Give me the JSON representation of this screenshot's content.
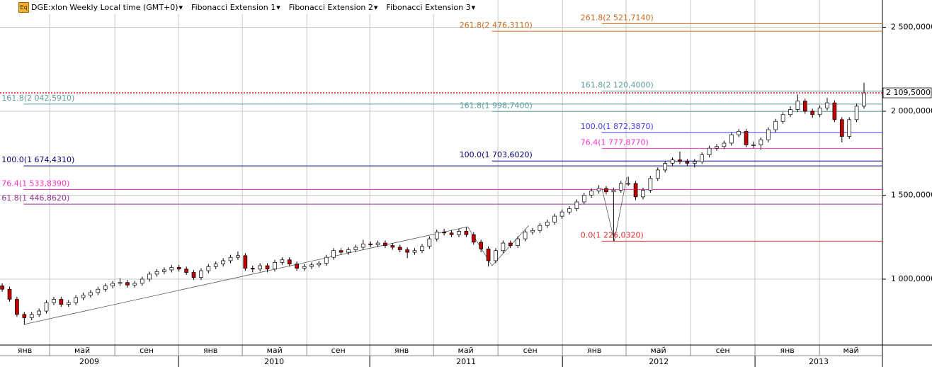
{
  "chart_data": {
    "type": "candlestick",
    "title": "DGE:xlon Weekly Local time (GMT+0)",
    "indicators": [
      "Fibonacci Extension 1",
      "Fibonacci Extension 2",
      "Fibonacci Extension 3"
    ],
    "open": [
      960000,
      940000,
      880000,
      790000,
      770000,
      790000,
      810000,
      860000,
      880000,
      850000,
      860000,
      890000,
      905000,
      920000,
      940000,
      960000,
      975000,
      980000,
      965000,
      975000,
      1000000,
      1030000,
      1045000,
      1055000,
      1070000,
      1060000,
      1040000,
      1010000,
      1050000,
      1075000,
      1090000,
      1110000,
      1130000,
      1140000,
      1065000,
      1060000,
      1080000,
      1060000,
      1100000,
      1115000,
      1090000,
      1065000,
      1075000,
      1085000,
      1095000,
      1130000,
      1170000,
      1160000,
      1175000,
      1190000,
      1210000,
      1205000,
      1215000,
      1200000,
      1190000,
      1175000,
      1160000,
      1170000,
      1195000,
      1240000,
      1280000,
      1275000,
      1265000,
      1285000,
      1265000,
      1220000,
      1180000,
      1110000,
      1170000,
      1215000,
      1200000,
      1240000,
      1280000,
      1290000,
      1320000,
      1340000,
      1375000,
      1400000,
      1420000,
      1460000,
      1500000,
      1525000,
      1540000,
      1520000,
      1530000,
      1570000,
      1570000,
      1490000,
      1530000,
      1600000,
      1650000,
      1690000,
      1710000,
      1700000,
      1690000,
      1700000,
      1740000,
      1780000,
      1790000,
      1810000,
      1860000,
      1880000,
      1800000,
      1800000,
      1830000,
      1890000,
      1940000,
      1980000,
      2010000,
      2060000,
      2000000,
      1980000,
      2020000,
      2050000,
      1950000,
      1850000,
      1950000,
      2030000
    ],
    "high": [
      975000,
      955000,
      895000,
      805000,
      805000,
      825000,
      875000,
      895000,
      895000,
      875000,
      905000,
      920000,
      935000,
      955000,
      975000,
      990000,
      1005000,
      995000,
      990000,
      1015000,
      1045000,
      1060000,
      1070000,
      1085000,
      1085000,
      1075000,
      1055000,
      1065000,
      1090000,
      1105000,
      1125000,
      1145000,
      1165000,
      1155000,
      1080000,
      1095000,
      1095000,
      1115000,
      1130000,
      1130000,
      1105000,
      1090000,
      1100000,
      1110000,
      1145000,
      1185000,
      1185000,
      1190000,
      1205000,
      1235000,
      1225000,
      1230000,
      1230000,
      1215000,
      1205000,
      1190000,
      1185000,
      1210000,
      1255000,
      1295000,
      1300000,
      1290000,
      1300000,
      1310000,
      1280000,
      1235000,
      1195000,
      1185000,
      1230000,
      1230000,
      1255000,
      1295000,
      1305000,
      1335000,
      1355000,
      1390000,
      1415000,
      1435000,
      1475000,
      1515000,
      1540000,
      1560000,
      1555000,
      1545000,
      1585000,
      1610000,
      1585000,
      1545000,
      1615000,
      1665000,
      1705000,
      1725000,
      1760000,
      1715000,
      1715000,
      1755000,
      1795000,
      1805000,
      1825000,
      1875000,
      1895000,
      1895000,
      1820000,
      1845000,
      1905000,
      1955000,
      1995000,
      2030000,
      2100000,
      2075000,
      2015000,
      2035000,
      2080000,
      2065000,
      1965000,
      1965000,
      2045000,
      2170000
    ],
    "low": [
      925000,
      865000,
      775000,
      730000,
      755000,
      775000,
      795000,
      845000,
      835000,
      835000,
      845000,
      875000,
      890000,
      905000,
      925000,
      945000,
      960000,
      950000,
      950000,
      960000,
      985000,
      1015000,
      1030000,
      1040000,
      1045000,
      1025000,
      995000,
      995000,
      1035000,
      1060000,
      1075000,
      1095000,
      1115000,
      1050000,
      1040000,
      1045000,
      1040000,
      1045000,
      1085000,
      1075000,
      1050000,
      1050000,
      1060000,
      1070000,
      1080000,
      1115000,
      1145000,
      1145000,
      1160000,
      1175000,
      1190000,
      1190000,
      1185000,
      1175000,
      1160000,
      1125000,
      1145000,
      1155000,
      1180000,
      1225000,
      1260000,
      1250000,
      1250000,
      1250000,
      1205000,
      1160000,
      1075000,
      1095000,
      1155000,
      1185000,
      1185000,
      1225000,
      1265000,
      1275000,
      1305000,
      1325000,
      1360000,
      1385000,
      1405000,
      1445000,
      1485000,
      1510000,
      1505000,
      1228000,
      1515000,
      1555000,
      1470000,
      1475000,
      1515000,
      1585000,
      1635000,
      1675000,
      1685000,
      1675000,
      1665000,
      1685000,
      1725000,
      1765000,
      1775000,
      1795000,
      1845000,
      1785000,
      1780000,
      1770000,
      1815000,
      1875000,
      1925000,
      1965000,
      1995000,
      1985000,
      1960000,
      1965000,
      2005000,
      1935000,
      1815000,
      1835000,
      1935000,
      2015000
    ],
    "close": [
      940000,
      880000,
      790000,
      770000,
      790000,
      810000,
      860000,
      880000,
      850000,
      860000,
      890000,
      905000,
      920000,
      940000,
      960000,
      975000,
      980000,
      965000,
      975000,
      1000000,
      1030000,
      1045000,
      1055000,
      1070000,
      1060000,
      1040000,
      1010000,
      1050000,
      1075000,
      1090000,
      1110000,
      1130000,
      1140000,
      1065000,
      1060000,
      1080000,
      1060000,
      1100000,
      1115000,
      1090000,
      1065000,
      1075000,
      1085000,
      1095000,
      1130000,
      1170000,
      1160000,
      1175000,
      1190000,
      1210000,
      1205000,
      1215000,
      1200000,
      1190000,
      1175000,
      1160000,
      1170000,
      1195000,
      1240000,
      1280000,
      1275000,
      1265000,
      1285000,
      1265000,
      1220000,
      1180000,
      1110000,
      1170000,
      1215000,
      1200000,
      1240000,
      1280000,
      1290000,
      1320000,
      1340000,
      1375000,
      1400000,
      1420000,
      1460000,
      1500000,
      1525000,
      1540000,
      1520000,
      1530000,
      1570000,
      1570000,
      1490000,
      1530000,
      1600000,
      1650000,
      1690000,
      1710000,
      1700000,
      1690000,
      1700000,
      1740000,
      1780000,
      1790000,
      1810000,
      1860000,
      1880000,
      1800000,
      1800000,
      1830000,
      1890000,
      1940000,
      1980000,
      2010000,
      2060000,
      2000000,
      1980000,
      2020000,
      2050000,
      1950000,
      1850000,
      1950000,
      2030000,
      2109500
    ],
    "up_color": "#ffffff",
    "down_color": "#c00000",
    "xlim": [
      -0.3,
      119.5
    ],
    "xticks": [
      {
        "value": -2.3,
        "label": "янв"
      },
      {
        "value": 6.44,
        "label": "май"
      },
      {
        "value": 15.29,
        "label": "сен"
      },
      {
        "value": 23.94,
        "label": "янв"
      },
      {
        "value": 32.6,
        "label": "май"
      },
      {
        "value": 41.35,
        "label": "сен"
      },
      {
        "value": 49.9,
        "label": "янв"
      },
      {
        "value": 58.56,
        "label": "май"
      },
      {
        "value": 67.3,
        "label": "сен"
      },
      {
        "value": 76.06,
        "label": "янв"
      },
      {
        "value": 84.7,
        "label": "май"
      },
      {
        "value": 93.46,
        "label": "сен"
      },
      {
        "value": 102.2,
        "label": "янв"
      },
      {
        "value": 110.96,
        "label": "май"
      }
    ],
    "year_ticks": [
      {
        "value": -2.3,
        "label": "2009"
      },
      {
        "value": 23.94,
        "label": "2010"
      },
      {
        "value": 49.9,
        "label": "2011"
      },
      {
        "value": 76.06,
        "label": "2012"
      },
      {
        "value": 102.2,
        "label": "2013"
      }
    ],
    "ylim": [
      607600,
      2662400
    ],
    "yticks": [
      {
        "value": 1000000,
        "label": "1 000,0000"
      },
      {
        "value": 1500000,
        "label": "1 500,0000"
      },
      {
        "value": 2000000,
        "label": "2 000,0000"
      },
      {
        "value": 2500000,
        "label": "2 500,0000"
      }
    ],
    "grid": true,
    "last_price": {
      "value": 2109500,
      "label": "2 109,5000",
      "color": "#e00000"
    },
    "extensions": [
      {
        "anchors": [
          [
            2.9,
            730000
          ],
          [
            63.2,
            1312000
          ],
          [
            66.5,
            1080000
          ]
        ],
        "levels": [
          {
            "value": 2042591,
            "label": "161.8(2 042,5910)",
            "color": "#5f9ea0"
          },
          {
            "value": 1674431,
            "label": "100.0(1 674,4310)",
            "color": "#000080"
          },
          {
            "value": 1533839,
            "label": "76.4(1 533,8390)",
            "color": "#ff33cc"
          },
          {
            "value": 1446862,
            "label": "61.8(1 446,8620)",
            "color": "#993399"
          }
        ]
      },
      {
        "anchors": [
          [
            66.5,
            1080000
          ],
          [
            71.5,
            1320000
          ]
        ],
        "levels": [
          {
            "value": 2476311,
            "label": "261.8(2 476,3110)",
            "color": "#d2691e"
          },
          {
            "value": 1998740,
            "label": "161.8(1 998,7400)",
            "color": "#5f9ea0"
          },
          {
            "value": 1703602,
            "label": "100.0(1 703,6020)",
            "color": "#000080"
          }
        ]
      },
      {
        "anchors": [
          [
            81.4,
            1544000
          ],
          [
            83.1,
            1228000
          ],
          [
            84.8,
            1608000
          ]
        ],
        "levels": [
          {
            "value": 2521714,
            "label": "261.8(2 521,7140)",
            "color": "#d2691e"
          },
          {
            "value": 2120400,
            "label": "161.8(2 120,4000)",
            "color": "#5f9ea0"
          },
          {
            "value": 1872387,
            "label": "100.0(1 872,3870)",
            "color": "#3d3dff"
          },
          {
            "value": 1777877,
            "label": "76.4(1 777,8770)",
            "color": "#ff33cc"
          },
          {
            "value": 1226032,
            "label": "0.0(1 226,0320)",
            "color": "#e03030"
          }
        ]
      }
    ]
  }
}
